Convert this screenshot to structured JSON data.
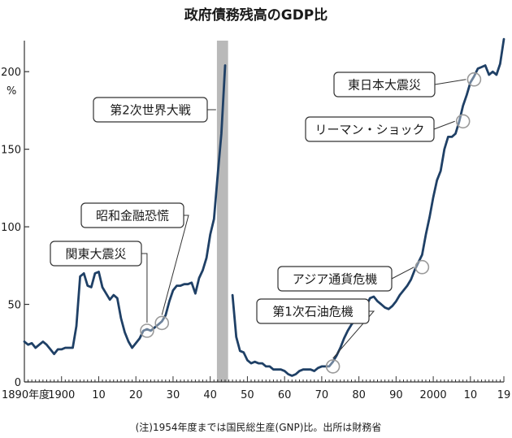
{
  "chart_data": {
    "type": "line",
    "title": "政府債務残高のGDP比",
    "ylabel": "%",
    "note": "(注)1954年度までは国民総生産(GNP)比。出所は財務省",
    "xlim": [
      1890,
      2019
    ],
    "ylim": [
      0,
      220
    ],
    "x_ticks": [
      {
        "value": 1890,
        "label": "1890年度"
      },
      {
        "value": 1900,
        "label": "1900"
      },
      {
        "value": 1910,
        "label": "10"
      },
      {
        "value": 1920,
        "label": "20"
      },
      {
        "value": 1930,
        "label": "30"
      },
      {
        "value": 1940,
        "label": "40"
      },
      {
        "value": 1950,
        "label": "50"
      },
      {
        "value": 1960,
        "label": "60"
      },
      {
        "value": 1970,
        "label": "70"
      },
      {
        "value": 1980,
        "label": "80"
      },
      {
        "value": 1990,
        "label": "90"
      },
      {
        "value": 2000,
        "label": "2000"
      },
      {
        "value": 2010,
        "label": "10"
      },
      {
        "value": 2019,
        "label": "19"
      }
    ],
    "y_ticks": [
      {
        "value": 0,
        "label": "0"
      },
      {
        "value": 50,
        "label": "50"
      },
      {
        "value": 100,
        "label": "100"
      },
      {
        "value": 150,
        "label": "150"
      },
      {
        "value": 200,
        "label": "200"
      }
    ],
    "gap_band": {
      "from": 1941.8,
      "to": 1944.8
    },
    "series": [
      {
        "segments": [
          {
            "x": [
              1890,
              1891,
              1892,
              1893,
              1894,
              1895,
              1896,
              1897,
              1898,
              1899,
              1900,
              1901,
              1902,
              1903,
              1904,
              1905,
              1906,
              1907,
              1908,
              1909,
              1910,
              1911,
              1912,
              1913,
              1914,
              1915,
              1916,
              1917,
              1918,
              1919,
              1920,
              1921,
              1922,
              1923,
              1924,
              1925,
              1926,
              1927,
              1928,
              1929,
              1930,
              1931,
              1932,
              1933,
              1934,
              1935,
              1936,
              1937,
              1938,
              1939,
              1940,
              1941,
              1942,
              1943,
              1944
            ],
            "y": [
              26,
              24,
              25,
              22,
              24,
              26,
              24,
              21,
              18,
              21,
              21,
              22,
              22,
              22,
              36,
              68,
              70,
              62,
              61,
              70,
              71,
              61,
              57,
              53,
              56,
              54,
              41,
              32,
              26,
              22,
              25,
              28,
              33,
              34,
              33,
              35,
              37,
              39,
              43,
              52,
              59,
              62,
              62,
              63,
              63,
              64,
              57,
              67,
              72,
              80,
              95,
              105,
              133,
              160,
              204
            ]
          },
          {
            "x": [
              1946,
              1947,
              1948,
              1949,
              1950,
              1951,
              1952,
              1953,
              1954,
              1955,
              1956,
              1957,
              1958,
              1959,
              1960,
              1961,
              1962,
              1963,
              1964,
              1965,
              1966,
              1967,
              1968,
              1969,
              1970,
              1971,
              1972,
              1973,
              1974,
              1975,
              1976,
              1977,
              1978,
              1979,
              1980,
              1981,
              1982,
              1983,
              1984,
              1985,
              1986,
              1987,
              1988,
              1989,
              1990,
              1991,
              1992,
              1993,
              1994,
              1995,
              1996,
              1997,
              1998,
              1999,
              2000,
              2001,
              2002,
              2003,
              2004,
              2005,
              2006,
              2007,
              2008,
              2009,
              2010,
              2011,
              2012,
              2013,
              2014,
              2015,
              2016,
              2017,
              2018,
              2019
            ],
            "y": [
              56,
              29,
              20,
              19,
              14,
              12,
              13,
              12,
              12,
              10,
              10,
              8,
              8,
              8,
              7,
              5,
              4,
              5,
              7,
              8,
              8,
              8,
              7,
              9,
              10,
              10,
              10,
              13,
              17,
              22,
              28,
              33,
              37,
              40,
              44,
              47,
              49,
              54,
              55,
              52,
              50,
              48,
              47,
              49,
              52,
              56,
              59,
              62,
              66,
              72,
              77,
              82,
              95,
              106,
              119,
              130,
              136,
              150,
              158,
              158,
              160,
              168,
              178,
              185,
              193,
              197,
              202,
              203,
              204,
              198,
              200,
              198,
              205,
              221
            ]
          }
        ]
      }
    ],
    "annotations": [
      {
        "label": "関東大震災",
        "x": 1923,
        "y": 33
      },
      {
        "label": "昭和金融恐慌",
        "x": 1927,
        "y": 38
      },
      {
        "label": "第2次世界大戦",
        "x": 1942,
        "y": 145
      },
      {
        "label": "第1次石油危機",
        "x": 1973,
        "y": 10
      },
      {
        "label": "アジア通貨危機",
        "x": 1997,
        "y": 74
      },
      {
        "label": "リーマン・ショック",
        "x": 2008,
        "y": 168
      },
      {
        "label": "東日本大震災",
        "x": 2011,
        "y": 195
      }
    ],
    "colors": {
      "line": "#1f4066",
      "band": "#b9b9b9",
      "axis": "#333333"
    }
  }
}
